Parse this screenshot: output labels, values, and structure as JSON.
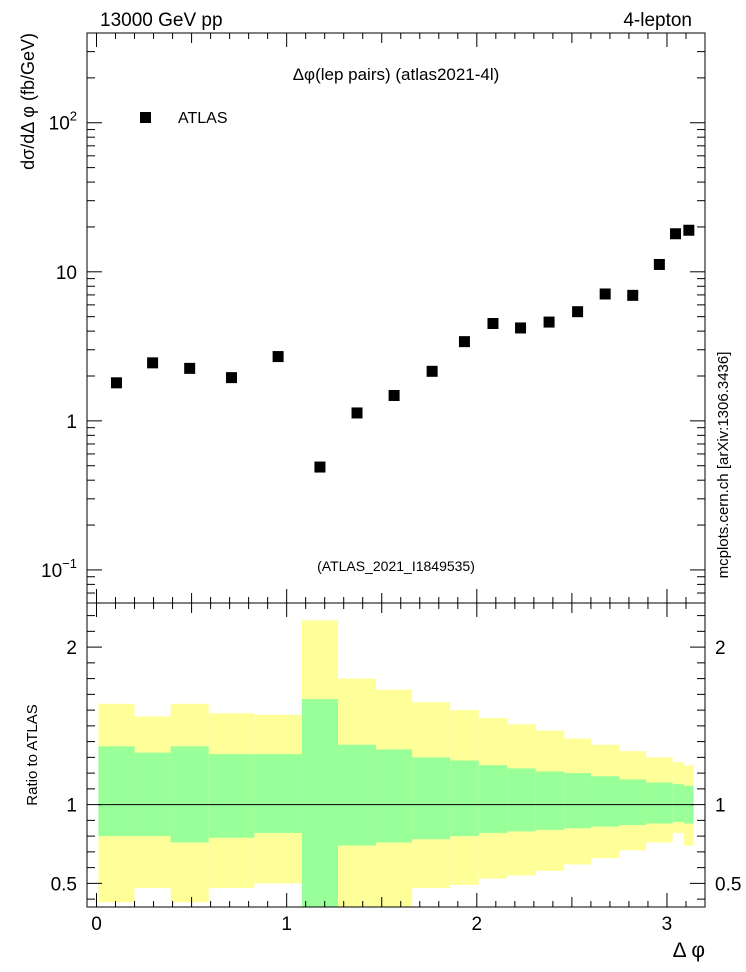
{
  "header": {
    "energy_label": "13000 GeV pp",
    "process_label": "4-lepton",
    "side_label": "mcplots.cern.ch [arXiv:1306.3436]"
  },
  "chart_data": [
    {
      "type": "scatter",
      "title": "Δφ(lep pairs) (atlas2021-4l)",
      "ylabel": "dσ/dΔ φ (fb/GeV)",
      "xlabel": "",
      "yscale": "log",
      "xlim": [
        -0.05,
        3.2
      ],
      "ylim": [
        0.06,
        400
      ],
      "y_ticks": [
        {
          "value": 0.1,
          "base": "10",
          "exp": "−1"
        },
        {
          "value": 1,
          "label": "1"
        },
        {
          "value": 10,
          "label": "10"
        },
        {
          "value": 100,
          "base": "10",
          "exp": "2"
        }
      ],
      "legend": {
        "label": "ATLAS",
        "placement": "top-left"
      },
      "annotation": "(ATLAS_2021_I1849535)",
      "annotation_color": "#999999",
      "marker_color": "#000000",
      "series": [
        {
          "name": "ATLAS",
          "x": [
            0.105,
            0.295,
            0.49,
            0.71,
            0.955,
            1.175,
            1.37,
            1.565,
            1.765,
            1.935,
            2.085,
            2.23,
            2.38,
            2.53,
            2.675,
            2.82,
            2.96,
            3.045,
            3.115
          ],
          "y": [
            1.8,
            2.45,
            2.25,
            1.95,
            2.7,
            0.49,
            1.13,
            1.48,
            2.15,
            3.4,
            4.5,
            4.2,
            4.6,
            5.4,
            7.1,
            6.95,
            11.2,
            18.0,
            19.0
          ]
        }
      ]
    },
    {
      "type": "area",
      "ylabel": "Ratio to ATLAS",
      "xlabel": "Δ φ",
      "xlim": [
        -0.05,
        3.2
      ],
      "ylim": [
        0.35,
        2.28
      ],
      "x_ticks": [
        0,
        1,
        2,
        3
      ],
      "y_ticks": [
        0.5,
        1,
        2
      ],
      "reference_line": 1,
      "colors": {
        "outer_band": "#ffff99",
        "inner_band": "#99ff99",
        "line": "#000000"
      },
      "bins": {
        "edges": [
          0.01,
          0.2,
          0.39,
          0.59,
          0.83,
          1.08,
          1.27,
          1.47,
          1.66,
          1.86,
          2.01,
          2.16,
          2.31,
          2.46,
          2.6,
          2.75,
          2.89,
          3.03,
          3.09,
          3.14
        ],
        "inner_low": [
          0.8,
          0.8,
          0.76,
          0.79,
          0.82,
          0.35,
          0.74,
          0.76,
          0.78,
          0.8,
          0.82,
          0.83,
          0.84,
          0.85,
          0.86,
          0.87,
          0.88,
          0.89,
          0.88
        ],
        "inner_high": [
          1.37,
          1.33,
          1.37,
          1.32,
          1.32,
          1.67,
          1.38,
          1.35,
          1.3,
          1.28,
          1.25,
          1.23,
          1.21,
          1.2,
          1.18,
          1.16,
          1.14,
          1.13,
          1.12
        ],
        "outer_low": [
          0.38,
          0.47,
          0.38,
          0.47,
          0.5,
          0.35,
          0.35,
          0.35,
          0.47,
          0.49,
          0.53,
          0.55,
          0.58,
          0.62,
          0.66,
          0.71,
          0.76,
          0.82,
          0.74
        ],
        "outer_high": [
          1.64,
          1.56,
          1.64,
          1.58,
          1.57,
          2.17,
          1.8,
          1.73,
          1.65,
          1.6,
          1.55,
          1.51,
          1.47,
          1.42,
          1.38,
          1.34,
          1.3,
          1.27,
          1.25
        ]
      }
    }
  ]
}
